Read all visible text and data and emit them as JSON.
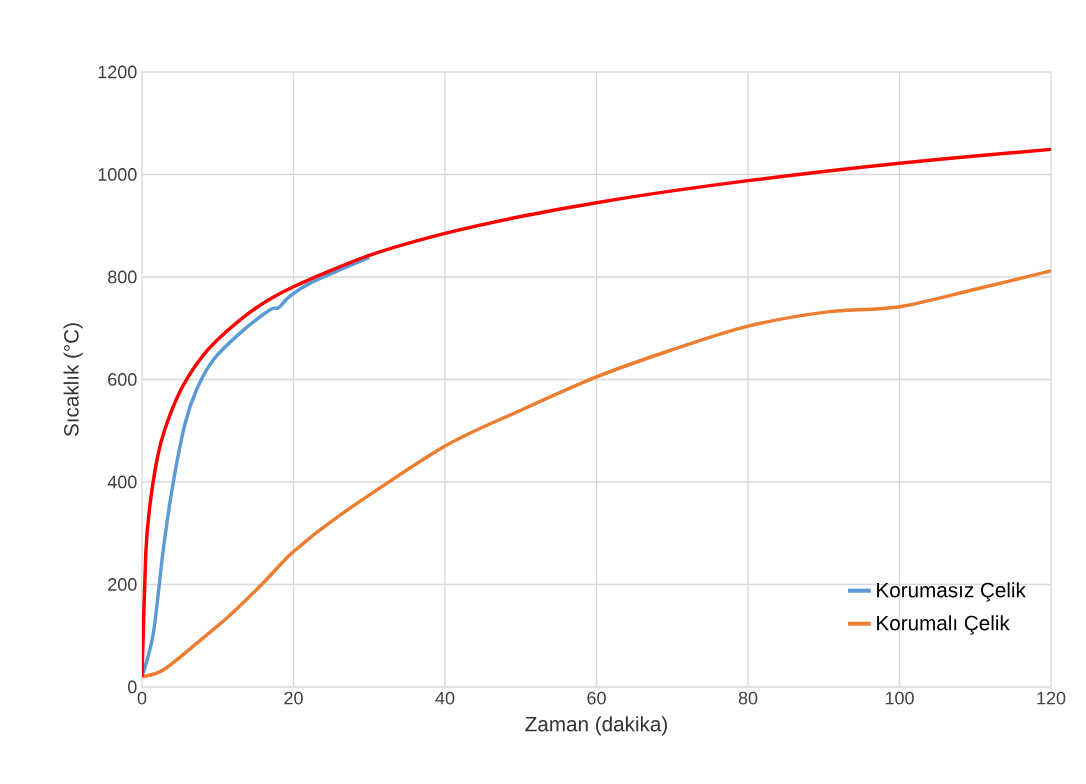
{
  "chart_data": {
    "type": "line",
    "xlabel": "Zaman (dakika)",
    "ylabel": "Sıcaklık (°C)",
    "xlim": [
      0,
      120
    ],
    "ylim": [
      0,
      1200
    ],
    "xticks": [
      0,
      20,
      40,
      60,
      80,
      100,
      120
    ],
    "yticks": [
      0,
      200,
      400,
      600,
      800,
      1000,
      1200
    ],
    "grid": true,
    "legend": "bottom right",
    "series": [
      {
        "name": "Korumasız Çelik",
        "color": "#5b9bd5",
        "x": [
          0,
          1.5,
          2.8,
          4.1,
          5.7,
          7.2,
          9.4,
          12.9,
          16.9,
          18,
          19.5,
          22.2,
          30
        ],
        "values": [
          20,
          105,
          267,
          397,
          515,
          580,
          638,
          690,
          736,
          740,
          762,
          788,
          838
        ]
      },
      {
        "name": "Korumalı Çelik",
        "color": "#ed7d31",
        "x": [
          0,
          2.8,
          7.2,
          11.6,
          16,
          19.9,
          26.1,
          40,
          50,
          60,
          70,
          80,
          90,
          100,
          110,
          120
        ],
        "values": [
          20,
          33,
          85,
          140,
          203,
          263,
          335,
          470,
          540,
          605,
          658,
          704,
          731,
          742,
          776,
          812
        ]
      },
      {
        "color": "#ff0000",
        "x": [
          0,
          0.5,
          1,
          2,
          3,
          5,
          7.5,
          10,
          15,
          20,
          30,
          40,
          50,
          60,
          70,
          80,
          90,
          100,
          110,
          120
        ],
        "values": [
          20,
          261,
          349,
          445,
          502,
          576,
          636,
          678,
          739,
          781,
          842,
          885,
          918,
          945,
          968,
          988,
          1006,
          1022,
          1036,
          1049
        ]
      }
    ]
  }
}
